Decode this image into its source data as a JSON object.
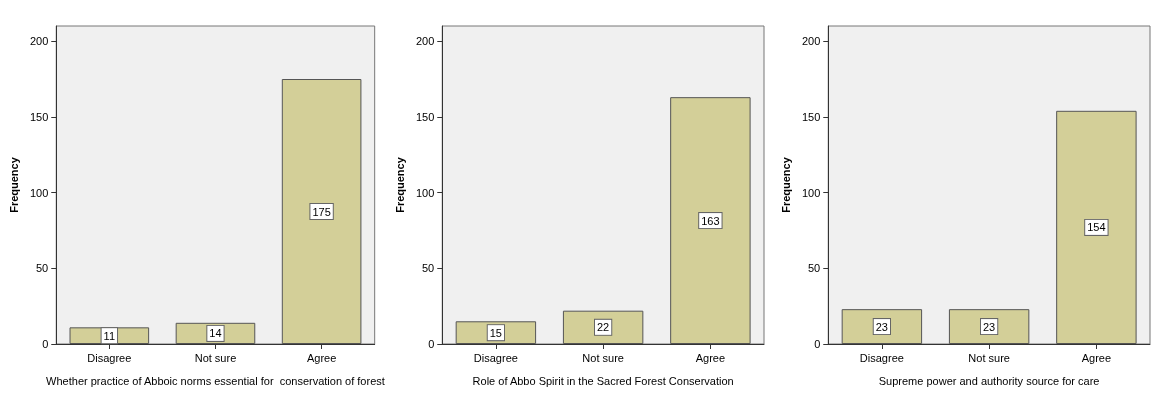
{
  "chart_data": [
    {
      "type": "bar",
      "xlabel": "Whether practice of Abboic norms essential for  conservation of forest",
      "ylabel": "Frequency",
      "categories": [
        "Disagree",
        "Not sure",
        "Agree"
      ],
      "values": [
        11,
        14,
        175
      ],
      "color": "#d3cf98",
      "ylim": [
        0,
        210
      ],
      "yticks": [
        0,
        50,
        100,
        150,
        200
      ],
      "data_labels": true,
      "grid": false
    },
    {
      "type": "bar",
      "xlabel": "Role of Abbo Spirit in the Sacred Forest Conservation",
      "ylabel": "Frequency",
      "categories": [
        "Disagree",
        "Not sure",
        "Agree"
      ],
      "values": [
        15,
        22,
        163
      ],
      "color": "#d3cf98",
      "ylim": [
        0,
        210
      ],
      "yticks": [
        0,
        50,
        100,
        150,
        200
      ],
      "data_labels": true,
      "grid": false
    },
    {
      "type": "bar",
      "xlabel": "Supreme power and authority source for care",
      "ylabel": "Frequency",
      "categories": [
        "Disagree",
        "Not sure",
        "Agree"
      ],
      "values": [
        23,
        23,
        154
      ],
      "color": "#d3cf98",
      "ylim": [
        0,
        210
      ],
      "yticks": [
        0,
        50,
        100,
        150,
        200
      ],
      "data_labels": true,
      "grid": false
    }
  ]
}
